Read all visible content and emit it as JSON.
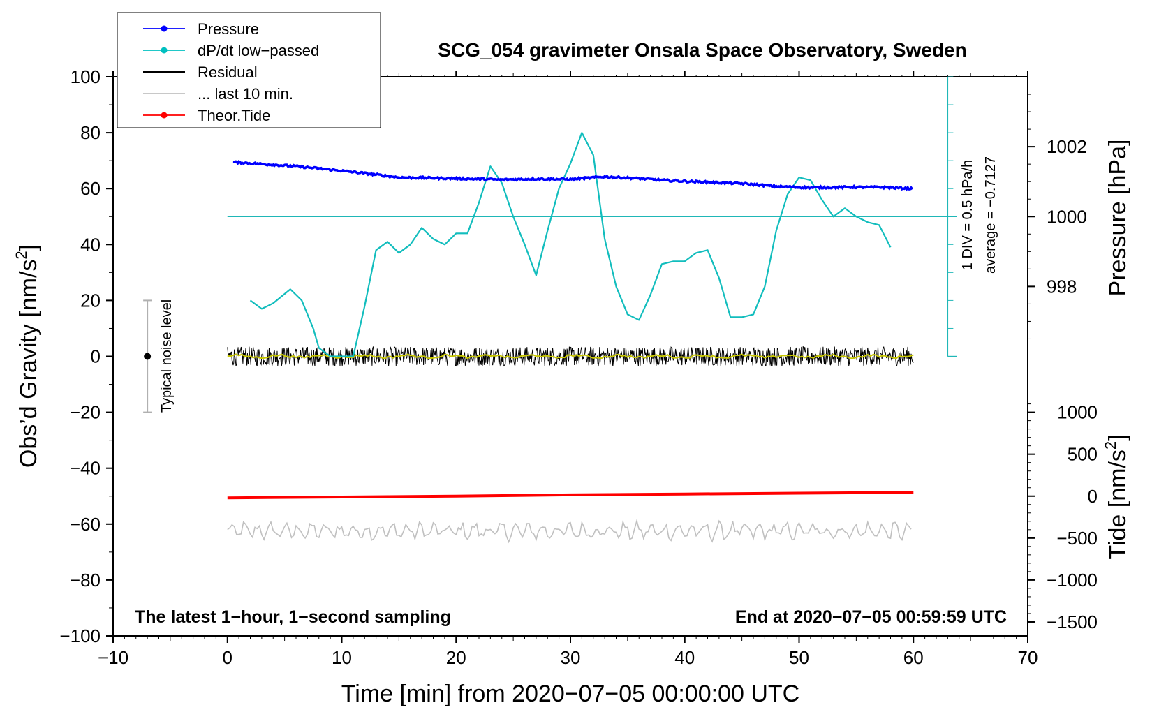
{
  "chart_data": {
    "type": "line",
    "title": "SCG_054 gravimeter Onsala Space Observatory, Sweden",
    "xlabel": "Time [min] from 2020−07−05 00:00:00 UTC",
    "ylabel": "Obs’d Gravity [nm/s",
    "ylabel_sup": "2",
    "ylabel_end": "]",
    "xlim": [
      -10,
      70
    ],
    "ylim": [
      -100,
      100
    ],
    "x_ticks": [
      -10,
      0,
      10,
      20,
      30,
      40,
      50,
      60,
      70
    ],
    "x_tick_labels": [
      "−10",
      "0",
      "10",
      "20",
      "30",
      "40",
      "50",
      "60",
      "70"
    ],
    "y_ticks": [
      100,
      80,
      60,
      40,
      20,
      0,
      -20,
      -40,
      -60,
      -80,
      -100
    ],
    "y_tick_labels": [
      "100",
      "80",
      "60",
      "40",
      "20",
      "0",
      "−20",
      "−40",
      "−60",
      "−80",
      "−100"
    ],
    "pressure_axis": {
      "label": "Pressure [hPa]",
      "ticks": [
        1002,
        1000,
        998
      ],
      "tick_labels": [
        "1002",
        "1000",
        "998"
      ],
      "mapping": {
        "hpa_at_gravity_50": 1000,
        "gravity_per_hpa": 12.5
      }
    },
    "tide_axis": {
      "label": "Tide [nm/s",
      "label_sup": "2",
      "label_end": "]",
      "ticks": [
        1000,
        500,
        0,
        -500,
        -1000,
        -1500
      ],
      "tick_labels": [
        "1000",
        "500",
        "0",
        "−500",
        "−1000",
        "−1500"
      ],
      "mapping": {
        "tide_at_gravity_minus50": 0,
        "gravity_per_unit": 0.03
      }
    },
    "dpdt_scale": {
      "label_line1": "1 DIV = 0.5 hPa/h",
      "label_line2": "average = −0.7127",
      "zero_level_gravity": 50,
      "bottom_gravity": 0,
      "x_position_min": 63
    },
    "noise_bar": {
      "label": "Typical noise level",
      "x": -7,
      "center": 0,
      "range": [
        -20,
        20
      ]
    },
    "legend": {
      "position": "top-left",
      "entries": [
        {
          "label": "Pressure",
          "color": "#0000ff",
          "marker": true
        },
        {
          "label": "dP/dt low−passed",
          "color": "#00c0c0",
          "marker": true
        },
        {
          "label": "Residual",
          "color": "#000000",
          "marker": false
        },
        {
          "label": "... last 10 min.",
          "color": "#c0c0c0",
          "marker": false
        },
        {
          "label": "Theor.Tide",
          "color": "#ff0000",
          "marker": true
        }
      ]
    },
    "series": [
      {
        "name": "Pressure",
        "color": "#0000ff",
        "unit": "gravity-axis",
        "x": [
          0.5,
          3,
          6,
          9,
          12,
          15,
          18,
          21,
          24,
          27,
          30,
          33,
          36,
          39,
          42,
          45,
          48,
          51,
          54,
          57,
          60
        ],
        "values": [
          69.5,
          68.8,
          68,
          66.8,
          65.5,
          64,
          63.8,
          63.5,
          63.2,
          63.5,
          63.3,
          64.3,
          63.6,
          62.8,
          62.3,
          61.8,
          60.8,
          60.3,
          60.5,
          60.5,
          60
        ]
      },
      {
        "name": "dP/dt low−passed",
        "color": "#00c0c0",
        "unit": "gravity-axis",
        "x": [
          2,
          3,
          4,
          5.5,
          6.5,
          7.5,
          8,
          9,
          10,
          11,
          12,
          13,
          14,
          15,
          16,
          17,
          18,
          19,
          20,
          21,
          22,
          23,
          24,
          25,
          26,
          27,
          28,
          29,
          30,
          31,
          32,
          33,
          34,
          35,
          36,
          37,
          38,
          39,
          40,
          41,
          42,
          43,
          44,
          45,
          46,
          47,
          48,
          49,
          50,
          51,
          52,
          53,
          54,
          55,
          56,
          57,
          58
        ],
        "values": [
          20,
          17,
          19,
          24,
          20,
          10,
          3,
          -5,
          -8,
          -5,
          18,
          38,
          41,
          37,
          40,
          46,
          42,
          40,
          44,
          44,
          55,
          68,
          62,
          50,
          40,
          29,
          45,
          60,
          69,
          80,
          72,
          42,
          25,
          15,
          13,
          22,
          33,
          34,
          34,
          37,
          38,
          28,
          14,
          14,
          15,
          25,
          45,
          58,
          64,
          63,
          56,
          50,
          53,
          50,
          48,
          47,
          39
        ]
      },
      {
        "name": "Residual",
        "color": "#000000",
        "unit": "gravity-axis",
        "x_range": [
          0,
          60
        ],
        "mean": 0,
        "amplitude": 3.5
      },
      {
        "name": "Residual smoothed",
        "color": "#c8c800",
        "unit": "gravity-axis",
        "x_range": [
          0,
          60
        ],
        "mean": 0,
        "amplitude": 0.8
      },
      {
        "name": "... last 10 min.",
        "color": "#c0c0c0",
        "unit": "gravity-axis",
        "x_range": [
          0,
          60
        ],
        "mean": -62.5,
        "amplitude": 3.5
      },
      {
        "name": "Theor.Tide",
        "color": "#ff0000",
        "unit": "tide-axis",
        "x": [
          0,
          10,
          20,
          30,
          40,
          50,
          60
        ],
        "values": [
          -20,
          -10,
          0,
          15,
          25,
          35,
          45
        ]
      }
    ],
    "notes": {
      "bottom_left": "The latest 1−hour, 1−second sampling",
      "bottom_right": "End at 2020−07−05 00:59:59 UTC"
    }
  }
}
